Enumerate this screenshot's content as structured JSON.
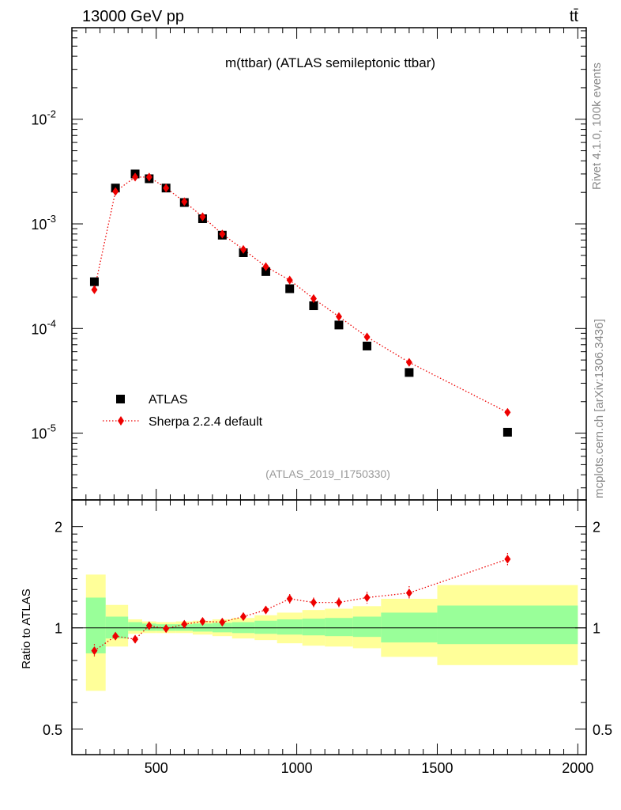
{
  "header": {
    "energy_label": "13000 GeV pp",
    "process_label": "tt̄"
  },
  "side_labels": {
    "rivet": "Rivet 4.1.0,  100k events",
    "mcplots": "mcplots.cern.ch [arXiv:1306.3436]"
  },
  "colors": {
    "data": "#000000",
    "mc": "#ee0000",
    "band_inner": "#99ff99",
    "band_outer": "#ffff99",
    "analysis_tag": "#999999"
  },
  "chart_data": [
    {
      "type": "scatter",
      "panel": "main",
      "title": "m(ttbar) (ATLAS semileptonic ttbar)",
      "analysis_tag": "(ATLAS_2019_I1750330)",
      "yscale": "log",
      "xlim": [
        200,
        2030
      ],
      "ylim": [
        2.3e-06,
        0.075
      ],
      "ytick_labels": [
        {
          "base": "10",
          "exp": "-2",
          "value": 0.01
        },
        {
          "base": "10",
          "exp": "-3",
          "value": 0.001
        },
        {
          "base": "10",
          "exp": "-4",
          "value": 0.0001
        },
        {
          "base": "10",
          "exp": "-5",
          "value": 1e-05
        }
      ],
      "legend_position": "bottom-left",
      "series": [
        {
          "name": "ATLAS",
          "marker": "square",
          "x": [
            280,
            355,
            425,
            475,
            535,
            600,
            665,
            735,
            810,
            890,
            975,
            1060,
            1150,
            1250,
            1400,
            1750
          ],
          "y": [
            0.00028,
            0.0022,
            0.003,
            0.0027,
            0.0022,
            0.0016,
            0.00112,
            0.00078,
            0.00053,
            0.00035,
            0.00024,
            0.000165,
            0.000108,
            6.8e-05,
            3.8e-05,
            1.02e-05
          ]
        },
        {
          "name": "Sherpa 2.2.4 default",
          "marker": "diamond",
          "line": "dotted",
          "x": [
            280,
            355,
            425,
            475,
            535,
            600,
            665,
            735,
            810,
            890,
            975,
            1060,
            1150,
            1250,
            1400,
            1750
          ],
          "y": [
            0.000235,
            0.00204,
            0.0028,
            0.0028,
            0.0022,
            0.00163,
            0.00117,
            0.0008,
            0.00057,
            0.00039,
            0.00029,
            0.000193,
            0.00013,
            8.3e-05,
            4.75e-05,
            1.58e-05
          ]
        }
      ]
    },
    {
      "type": "scatter",
      "panel": "ratio",
      "ylabel": "Ratio to ATLAS",
      "yscale": "log",
      "xlim": [
        200,
        2030
      ],
      "ylim": [
        0.42,
        2.4
      ],
      "x_tick_labels": [
        "500",
        "1000",
        "1500",
        "2000"
      ],
      "x_ticks": [
        500,
        1000,
        1500,
        2000
      ],
      "y_tick_labels": [
        "2",
        "1",
        "0.5"
      ],
      "y_ticks": [
        2,
        1,
        0.5
      ],
      "bins": [
        {
          "lo": 250,
          "hi": 320,
          "inner": [
            0.84,
            1.23
          ],
          "outer": [
            0.65,
            1.44
          ]
        },
        {
          "lo": 320,
          "hi": 400,
          "inner": [
            0.93,
            1.08
          ],
          "outer": [
            0.88,
            1.17
          ]
        },
        {
          "lo": 400,
          "hi": 450,
          "inner": [
            0.98,
            1.04
          ],
          "outer": [
            0.96,
            1.06
          ]
        },
        {
          "lo": 450,
          "hi": 500,
          "inner": [
            0.98,
            1.03
          ],
          "outer": [
            0.965,
            1.045
          ]
        },
        {
          "lo": 500,
          "hi": 570,
          "inner": [
            0.98,
            1.025
          ],
          "outer": [
            0.965,
            1.04
          ]
        },
        {
          "lo": 570,
          "hi": 630,
          "inner": [
            0.98,
            1.025
          ],
          "outer": [
            0.965,
            1.045
          ]
        },
        {
          "lo": 630,
          "hi": 700,
          "inner": [
            0.975,
            1.03
          ],
          "outer": [
            0.955,
            1.05
          ]
        },
        {
          "lo": 700,
          "hi": 770,
          "inner": [
            0.97,
            1.035
          ],
          "outer": [
            0.945,
            1.06
          ]
        },
        {
          "lo": 770,
          "hi": 850,
          "inner": [
            0.965,
            1.04
          ],
          "outer": [
            0.93,
            1.07
          ]
        },
        {
          "lo": 850,
          "hi": 930,
          "inner": [
            0.96,
            1.05
          ],
          "outer": [
            0.92,
            1.09
          ]
        },
        {
          "lo": 930,
          "hi": 1020,
          "inner": [
            0.955,
            1.06
          ],
          "outer": [
            0.9,
            1.11
          ]
        },
        {
          "lo": 1020,
          "hi": 1100,
          "inner": [
            0.95,
            1.065
          ],
          "outer": [
            0.885,
            1.13
          ]
        },
        {
          "lo": 1100,
          "hi": 1200,
          "inner": [
            0.945,
            1.07
          ],
          "outer": [
            0.88,
            1.14
          ]
        },
        {
          "lo": 1200,
          "hi": 1300,
          "inner": [
            0.94,
            1.08
          ],
          "outer": [
            0.87,
            1.16
          ]
        },
        {
          "lo": 1300,
          "hi": 1500,
          "inner": [
            0.905,
            1.11
          ],
          "outer": [
            0.82,
            1.22
          ]
        },
        {
          "lo": 1500,
          "hi": 2000,
          "inner": [
            0.895,
            1.165
          ],
          "outer": [
            0.775,
            1.34
          ]
        }
      ],
      "series": [
        {
          "name": "Sherpa 2.2.4 default",
          "marker": "diamond",
          "line": "dotted",
          "x": [
            280,
            355,
            425,
            475,
            535,
            600,
            665,
            735,
            810,
            890,
            975,
            1060,
            1150,
            1250,
            1400,
            1750
          ],
          "y": [
            0.855,
            0.945,
            0.925,
            1.015,
            0.995,
            1.025,
            1.045,
            1.04,
            1.08,
            1.13,
            1.22,
            1.19,
            1.19,
            1.23,
            1.27,
            1.6
          ],
          "yerr": [
            0.04,
            0.02,
            0.02,
            0.02,
            0.02,
            0.02,
            0.02,
            0.02,
            0.03,
            0.03,
            0.04,
            0.04,
            0.04,
            0.05,
            0.06,
            0.07
          ]
        }
      ]
    }
  ]
}
